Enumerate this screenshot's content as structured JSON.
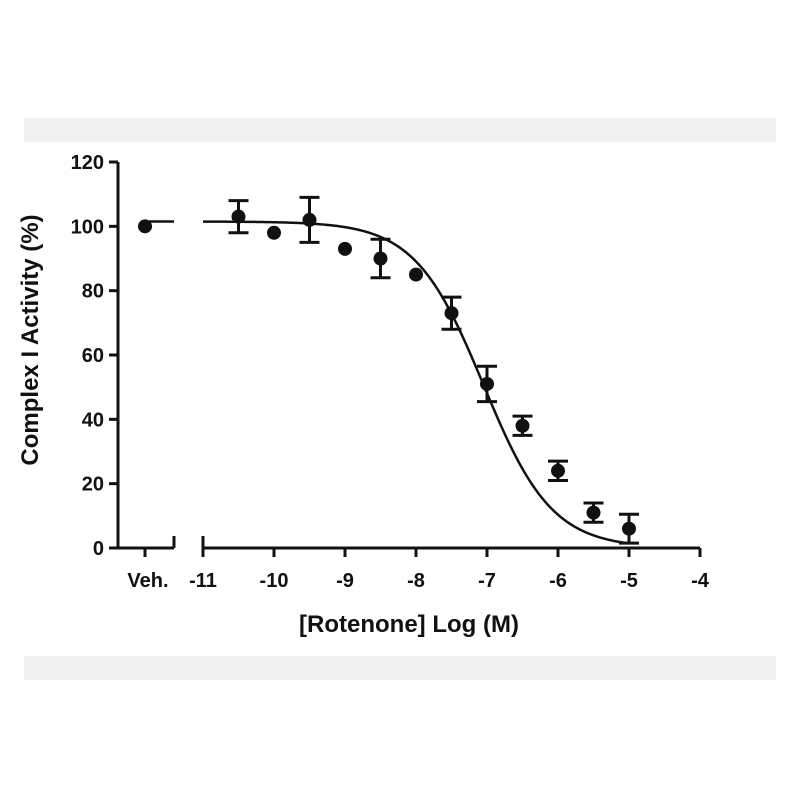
{
  "chart_data": {
    "type": "scatter",
    "title": "",
    "xlabel": "[Rotenone] Log (M)",
    "ylabel": "Complex I Activity (%)",
    "xlim": [
      -11,
      -4
    ],
    "ylim": [
      0,
      120
    ],
    "x_ticks": [
      -11,
      -10,
      -9,
      -8,
      -7,
      -6,
      -5,
      -4
    ],
    "y_ticks": [
      0,
      20,
      40,
      60,
      80,
      100,
      120
    ],
    "x_tick_labels": [
      "-11",
      "-10",
      "-9",
      "-8",
      "-7",
      "-6",
      "-5",
      "-4"
    ],
    "y_tick_labels": [
      "0",
      "20",
      "40",
      "60",
      "80",
      "100",
      "120"
    ],
    "broken_x_axis": true,
    "vehicle": {
      "label": "Veh.",
      "value": 100
    },
    "series": [
      {
        "x": [
          -10.5,
          -10.0,
          -9.5,
          -9.0,
          -8.5,
          -8.0,
          -7.5,
          -7.0,
          -6.5,
          -6.0,
          -5.5,
          -5.0
        ],
        "y": [
          103,
          98,
          102,
          93,
          90,
          85,
          73,
          51,
          38,
          24,
          11,
          6
        ],
        "error": [
          5,
          0,
          7,
          0,
          6,
          0,
          5,
          5.5,
          3,
          3,
          3,
          4.5
        ]
      }
    ],
    "fit_curve": {
      "model": "sigmoidal dose-response",
      "top": 101.5,
      "bottom": 0,
      "log_ec50": -7.05,
      "hill_slope": -0.9
    },
    "grid": false,
    "legend": "none",
    "colors": {
      "ink": "#111111",
      "band": "#f1f1f1"
    }
  }
}
